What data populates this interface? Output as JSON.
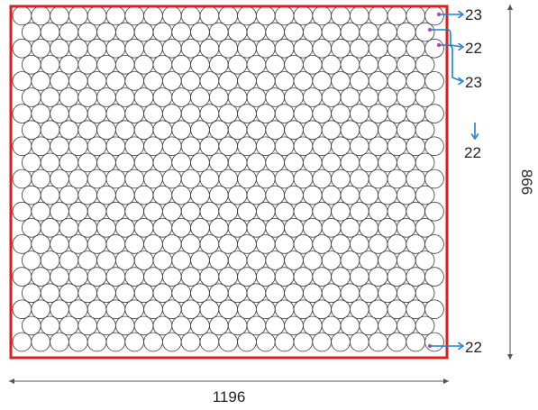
{
  "diagram": {
    "width_label": "1196",
    "height_label": "866",
    "row_counts": [
      "23",
      "22",
      "23",
      "22",
      "22"
    ],
    "colors": {
      "border": "#e01c1c",
      "circle_stroke": "#3a3a3a",
      "circle_fill": "#ffffff",
      "arrow": "#1e7fd8",
      "marker": "#c04a9c",
      "dimension_line": "#555555"
    }
  }
}
